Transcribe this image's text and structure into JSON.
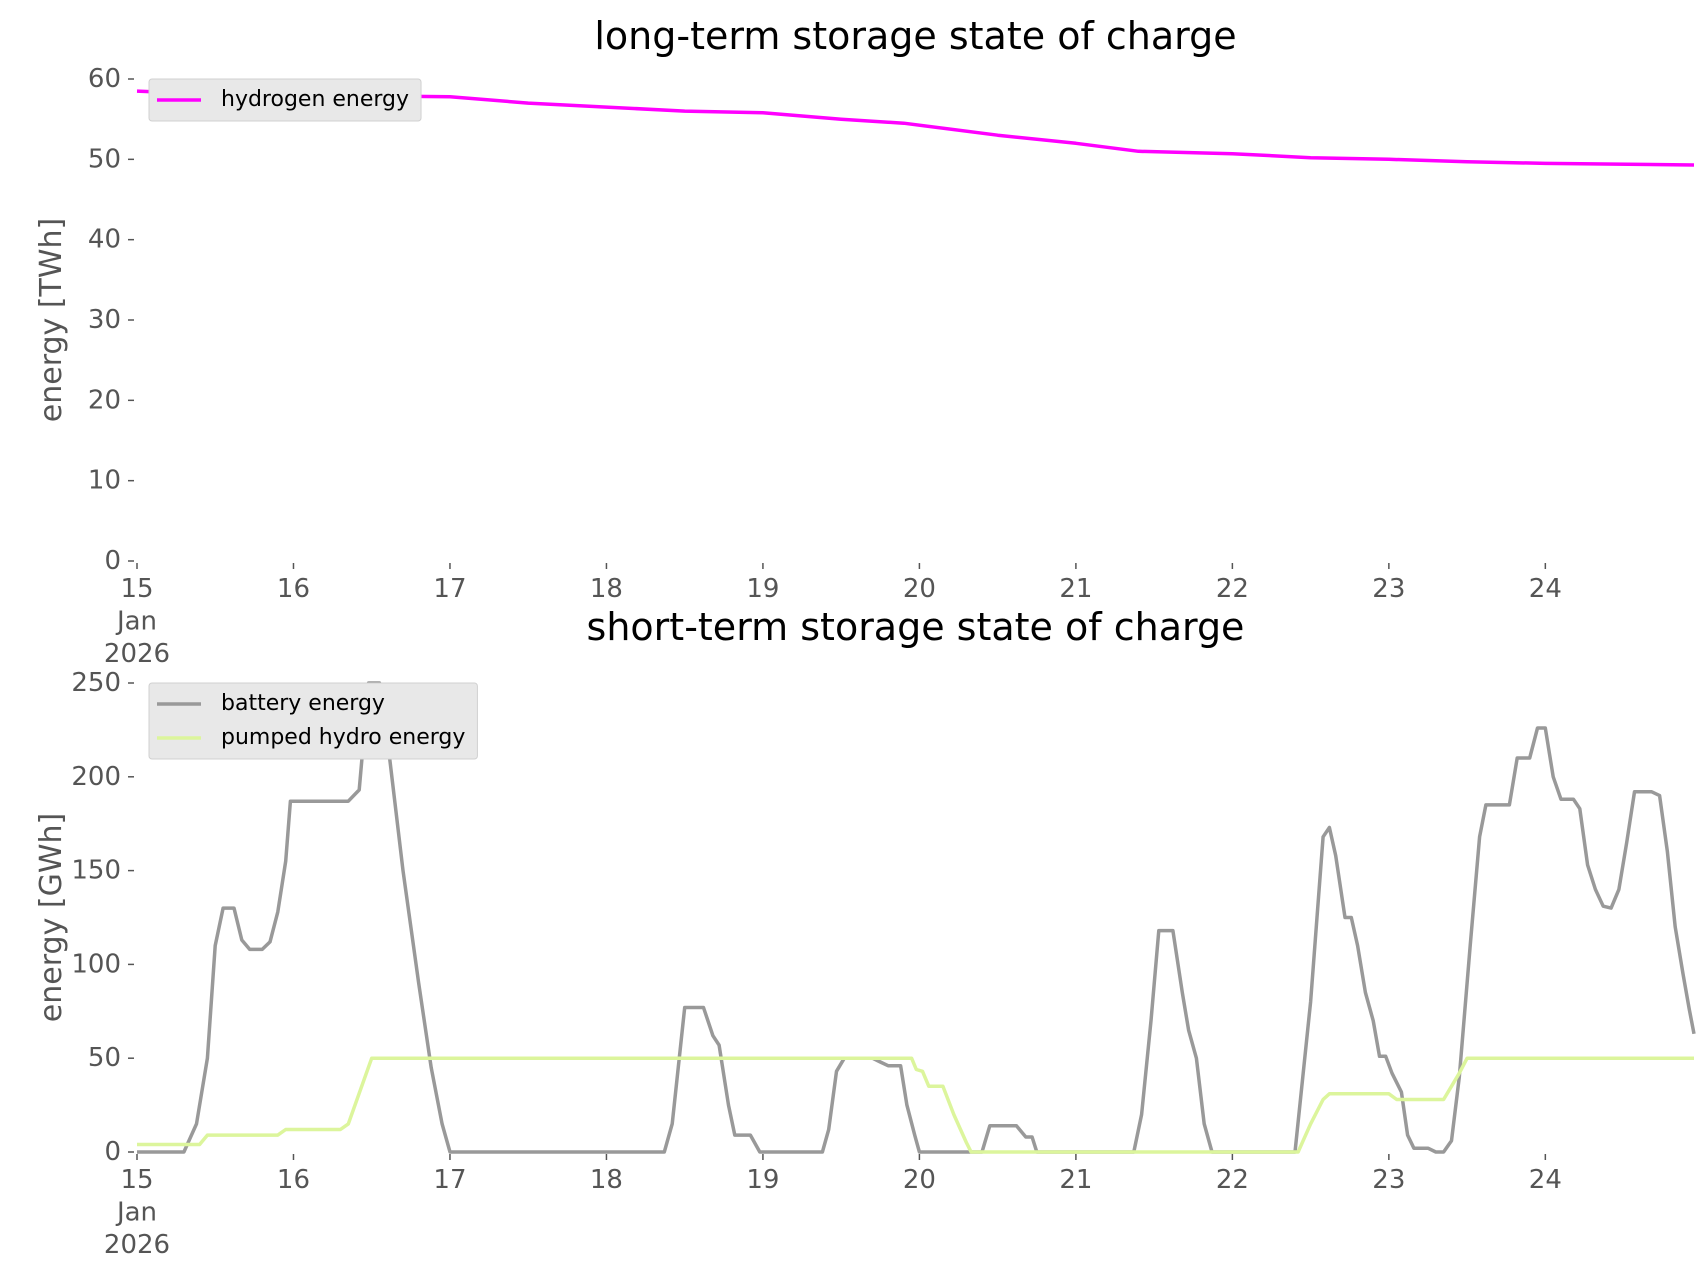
{
  "chart_data": [
    {
      "type": "line",
      "title": "long-term storage state of charge",
      "y_label": "energy [TWh]",
      "xlim": [
        15,
        24.95
      ],
      "xticks": [
        {
          "value": 15,
          "label": "15\nJan\n2026"
        },
        16,
        17,
        18,
        19,
        20,
        21,
        22,
        23,
        24
      ],
      "ylim": [
        0,
        60
      ],
      "yticks": [
        0,
        10,
        20,
        30,
        40,
        50,
        60
      ],
      "grid": false,
      "legend": "upper left",
      "series": [
        {
          "name": "hydrogen energy",
          "color": "#ff00ff",
          "x": [
            15,
            15.5,
            16,
            16.5,
            17,
            17.5,
            18,
            18.5,
            19,
            19.5,
            19.9,
            20.5,
            21,
            21.4,
            22,
            22.5,
            23,
            23.5,
            24,
            24.95
          ],
          "values": [
            58.5,
            58.1,
            58,
            57.9,
            57.8,
            57,
            56.5,
            56,
            55.8,
            55,
            54.5,
            53,
            52,
            51,
            50.7,
            50.2,
            50,
            49.7,
            49.5,
            49.3
          ]
        }
      ]
    },
    {
      "type": "line",
      "title": "short-term storage state of charge",
      "y_label": "energy [GWh]",
      "xlim": [
        15,
        24.95
      ],
      "xticks": [
        {
          "value": 15,
          "label": "15\nJan\n2026"
        },
        16,
        17,
        18,
        19,
        20,
        21,
        22,
        23,
        24
      ],
      "ylim": [
        0,
        250
      ],
      "yticks": [
        0,
        50,
        100,
        150,
        200,
        250
      ],
      "grid": false,
      "legend": "upper left",
      "series": [
        {
          "name": "battery energy",
          "color": "#999999",
          "x": [
            15,
            15.3,
            15.38,
            15.45,
            15.5,
            15.55,
            15.62,
            15.67,
            15.72,
            15.8,
            15.85,
            15.9,
            15.95,
            15.98,
            16.35,
            16.42,
            16.48,
            16.55,
            16.6,
            16.7,
            16.8,
            16.88,
            16.95,
            17,
            18.37,
            18.42,
            18.5,
            18.62,
            18.68,
            18.72,
            18.78,
            18.82,
            18.92,
            18.98,
            19.38,
            19.42,
            19.47,
            19.52,
            19.7,
            19.75,
            19.8,
            19.88,
            19.92,
            19.97,
            20,
            20.4,
            20.45,
            20.62,
            20.68,
            20.72,
            20.75,
            21.37,
            21.42,
            21.48,
            21.53,
            21.62,
            21.68,
            21.72,
            21.77,
            21.82,
            21.87,
            22.4,
            22.5,
            22.58,
            22.62,
            22.66,
            22.72,
            22.76,
            22.8,
            22.85,
            22.9,
            22.94,
            22.98,
            23.02,
            23.08,
            23.12,
            23.16,
            23.25,
            23.3,
            23.35,
            23.4,
            23.45,
            23.52,
            23.58,
            23.62,
            23.77,
            23.82,
            23.9,
            23.95,
            24,
            24.05,
            24.1,
            24.18,
            24.22,
            24.27,
            24.32,
            24.37,
            24.42,
            24.47,
            24.52,
            24.57,
            24.68,
            24.73,
            24.78,
            24.83,
            24.88,
            24.92,
            24.95
          ],
          "values": [
            0,
            0,
            15,
            50,
            110,
            130,
            130,
            113,
            108,
            108,
            112,
            128,
            155,
            187,
            187,
            193,
            250,
            250,
            220,
            150,
            90,
            45,
            15,
            0,
            0,
            15,
            77,
            77,
            62,
            57,
            25,
            9,
            9,
            0,
            0,
            12,
            43,
            50,
            50,
            48,
            46,
            46,
            25,
            9,
            0,
            0,
            14,
            14,
            8,
            8,
            0,
            0,
            20,
            70,
            118,
            118,
            85,
            65,
            50,
            15,
            0,
            0,
            80,
            168,
            173,
            158,
            125,
            125,
            110,
            85,
            70,
            51,
            51,
            42,
            32,
            9,
            2,
            2,
            0,
            0,
            6,
            40,
            110,
            168,
            185,
            185,
            210,
            210,
            226,
            226,
            200,
            188,
            188,
            183,
            153,
            140,
            131,
            130,
            140,
            165,
            192,
            192,
            190,
            160,
            120,
            95,
            76,
            63
          ]
        },
        {
          "name": "pumped hydro energy",
          "color": "#dcf59c",
          "x": [
            15,
            15.4,
            15.45,
            15.9,
            15.95,
            16.3,
            16.35,
            16.5,
            19.95,
            19.98,
            20.02,
            20.06,
            20.15,
            20.22,
            20.3,
            20.33,
            22.42,
            22.5,
            22.58,
            22.62,
            23,
            23.05,
            23.35,
            23.45,
            23.5,
            24.95
          ],
          "values": [
            4,
            4,
            9,
            9,
            12,
            12,
            15,
            50,
            50,
            44,
            43,
            35,
            35,
            20,
            5,
            0,
            0,
            15,
            28,
            31,
            31,
            28,
            28,
            42,
            50,
            50
          ]
        }
      ]
    }
  ]
}
